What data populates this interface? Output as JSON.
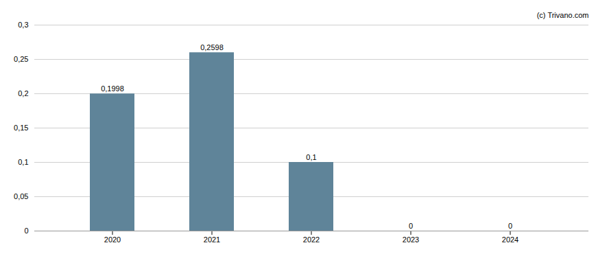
{
  "chart_data": {
    "type": "bar",
    "categories": [
      "2020",
      "2021",
      "2022",
      "2023",
      "2024"
    ],
    "values": [
      0.1998,
      0.2598,
      0.1,
      0,
      0
    ],
    "value_labels": [
      "0,1998",
      "0,2598",
      "0,1",
      "0",
      "0"
    ],
    "color": "#5f8499",
    "ylim": [
      0,
      0.3
    ],
    "yticks": [
      0,
      {
        "value": 0.05,
        "label": "0,05"
      },
      {
        "value": 0.1,
        "label": "0,1"
      },
      {
        "value": 0.15,
        "label": "0,15"
      },
      {
        "value": 0.2,
        "label": "0,2"
      },
      {
        "value": 0.25,
        "label": "0,25"
      },
      {
        "value": 0.3,
        "label": "0,3"
      }
    ],
    "grid": true,
    "data_labels": true,
    "annotations": [
      "(c) Trivano.com"
    ]
  }
}
